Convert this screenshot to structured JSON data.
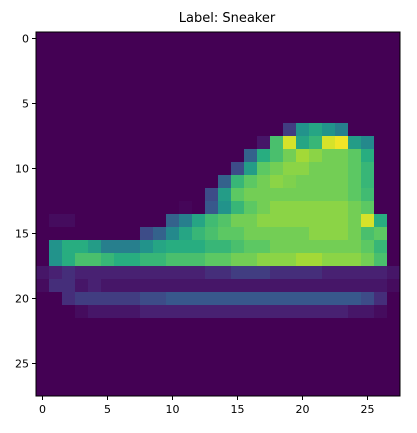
{
  "chart_data": {
    "type": "heatmap",
    "title": "Label: Sneaker",
    "colormap": "viridis",
    "value_range": [
      0,
      255
    ],
    "grid": false,
    "x_ticks": [
      0,
      5,
      10,
      15,
      20,
      25
    ],
    "y_ticks": [
      0,
      5,
      10,
      15,
      20,
      25
    ],
    "rows": 28,
    "cols": 28,
    "pixels": [
      [
        0,
        0,
        0,
        0,
        0,
        0,
        0,
        0,
        0,
        0,
        0,
        0,
        0,
        0,
        0,
        0,
        0,
        0,
        0,
        0,
        0,
        0,
        0,
        0,
        0,
        0,
        0,
        0
      ],
      [
        0,
        0,
        0,
        0,
        0,
        0,
        0,
        0,
        0,
        0,
        0,
        0,
        0,
        0,
        0,
        0,
        0,
        0,
        0,
        0,
        0,
        0,
        0,
        0,
        0,
        0,
        0,
        0
      ],
      [
        0,
        0,
        0,
        0,
        0,
        0,
        0,
        0,
        0,
        0,
        0,
        0,
        0,
        0,
        0,
        0,
        0,
        0,
        0,
        0,
        0,
        0,
        0,
        0,
        0,
        0,
        0,
        0
      ],
      [
        0,
        0,
        0,
        0,
        0,
        0,
        0,
        0,
        0,
        0,
        0,
        0,
        0,
        0,
        0,
        0,
        0,
        0,
        0,
        0,
        0,
        0,
        0,
        0,
        0,
        0,
        0,
        0
      ],
      [
        0,
        0,
        0,
        0,
        0,
        0,
        0,
        0,
        0,
        0,
        0,
        0,
        0,
        0,
        0,
        0,
        0,
        0,
        0,
        0,
        0,
        0,
        0,
        0,
        0,
        0,
        0,
        0
      ],
      [
        0,
        0,
        0,
        0,
        0,
        0,
        0,
        0,
        0,
        0,
        0,
        0,
        0,
        0,
        0,
        0,
        0,
        0,
        0,
        0,
        0,
        0,
        0,
        0,
        0,
        0,
        0,
        0
      ],
      [
        0,
        0,
        0,
        0,
        0,
        0,
        0,
        0,
        0,
        0,
        0,
        0,
        0,
        0,
        0,
        0,
        0,
        0,
        0,
        0,
        0,
        0,
        0,
        0,
        0,
        0,
        0,
        0
      ],
      [
        0,
        0,
        0,
        0,
        0,
        0,
        0,
        0,
        0,
        0,
        0,
        0,
        0,
        0,
        0,
        0,
        0,
        0,
        0,
        50,
        130,
        150,
        130,
        110,
        0,
        0,
        0,
        0
      ],
      [
        0,
        0,
        0,
        0,
        0,
        0,
        0,
        0,
        0,
        0,
        0,
        0,
        0,
        0,
        0,
        0,
        0,
        20,
        180,
        240,
        150,
        170,
        240,
        250,
        140,
        120,
        0,
        0
      ],
      [
        0,
        0,
        0,
        0,
        0,
        0,
        0,
        0,
        0,
        0,
        0,
        0,
        0,
        0,
        0,
        0,
        80,
        160,
        180,
        200,
        220,
        210,
        200,
        200,
        190,
        160,
        0,
        0
      ],
      [
        0,
        0,
        0,
        0,
        0,
        0,
        0,
        0,
        0,
        0,
        0,
        0,
        0,
        0,
        0,
        60,
        140,
        190,
        200,
        210,
        210,
        200,
        200,
        200,
        190,
        170,
        0,
        0
      ],
      [
        0,
        0,
        0,
        0,
        0,
        0,
        0,
        0,
        0,
        0,
        0,
        0,
        0,
        0,
        80,
        170,
        190,
        200,
        210,
        205,
        200,
        200,
        200,
        200,
        190,
        170,
        0,
        0
      ],
      [
        0,
        0,
        0,
        0,
        0,
        0,
        0,
        0,
        0,
        0,
        0,
        0,
        0,
        60,
        140,
        190,
        200,
        200,
        200,
        200,
        200,
        200,
        200,
        200,
        190,
        175,
        0,
        0
      ],
      [
        0,
        0,
        0,
        0,
        0,
        0,
        0,
        0,
        0,
        0,
        0,
        5,
        0,
        70,
        130,
        170,
        190,
        200,
        210,
        210,
        210,
        210,
        210,
        210,
        200,
        190,
        0,
        0
      ],
      [
        0,
        10,
        10,
        0,
        0,
        0,
        0,
        0,
        0,
        0,
        80,
        110,
        150,
        175,
        185,
        200,
        200,
        210,
        210,
        210,
        210,
        210,
        210,
        210,
        200,
        240,
        160,
        0
      ],
      [
        0,
        0,
        0,
        0,
        0,
        0,
        0,
        0,
        60,
        80,
        120,
        150,
        170,
        180,
        190,
        190,
        200,
        200,
        200,
        200,
        200,
        210,
        210,
        210,
        200,
        180,
        190,
        0
      ],
      [
        0,
        130,
        160,
        160,
        140,
        110,
        110,
        110,
        130,
        150,
        160,
        160,
        160,
        170,
        170,
        180,
        190,
        190,
        200,
        200,
        200,
        200,
        200,
        200,
        200,
        190,
        170,
        0
      ],
      [
        0,
        130,
        160,
        180,
        180,
        170,
        160,
        160,
        170,
        170,
        180,
        180,
        180,
        190,
        190,
        200,
        200,
        210,
        210,
        210,
        220,
        220,
        210,
        210,
        210,
        200,
        180,
        0
      ],
      [
        20,
        30,
        40,
        30,
        30,
        30,
        30,
        30,
        30,
        30,
        30,
        30,
        30,
        40,
        40,
        50,
        50,
        50,
        40,
        40,
        40,
        40,
        30,
        30,
        30,
        30,
        30,
        20
      ],
      [
        10,
        40,
        40,
        20,
        30,
        20,
        20,
        20,
        20,
        20,
        20,
        20,
        20,
        20,
        20,
        20,
        20,
        20,
        20,
        20,
        20,
        20,
        20,
        20,
        20,
        20,
        20,
        10
      ],
      [
        0,
        0,
        40,
        50,
        50,
        50,
        50,
        50,
        60,
        60,
        70,
        70,
        70,
        70,
        70,
        70,
        70,
        70,
        70,
        70,
        70,
        70,
        70,
        70,
        70,
        60,
        40,
        0
      ],
      [
        0,
        0,
        0,
        10,
        20,
        20,
        20,
        20,
        30,
        30,
        30,
        30,
        30,
        30,
        30,
        30,
        30,
        30,
        30,
        30,
        30,
        30,
        30,
        30,
        20,
        20,
        10,
        0
      ],
      [
        0,
        0,
        0,
        0,
        0,
        0,
        0,
        0,
        0,
        0,
        0,
        0,
        0,
        0,
        0,
        0,
        0,
        0,
        0,
        0,
        0,
        0,
        0,
        0,
        0,
        0,
        0,
        0
      ],
      [
        0,
        0,
        0,
        0,
        0,
        0,
        0,
        0,
        0,
        0,
        0,
        0,
        0,
        0,
        0,
        0,
        0,
        0,
        0,
        0,
        0,
        0,
        0,
        0,
        0,
        0,
        0,
        0
      ],
      [
        0,
        0,
        0,
        0,
        0,
        0,
        0,
        0,
        0,
        0,
        0,
        0,
        0,
        0,
        0,
        0,
        0,
        0,
        0,
        0,
        0,
        0,
        0,
        0,
        0,
        0,
        0,
        0
      ],
      [
        0,
        0,
        0,
        0,
        0,
        0,
        0,
        0,
        0,
        0,
        0,
        0,
        0,
        0,
        0,
        0,
        0,
        0,
        0,
        0,
        0,
        0,
        0,
        0,
        0,
        0,
        0,
        0
      ],
      [
        0,
        0,
        0,
        0,
        0,
        0,
        0,
        0,
        0,
        0,
        0,
        0,
        0,
        0,
        0,
        0,
        0,
        0,
        0,
        0,
        0,
        0,
        0,
        0,
        0,
        0,
        0,
        0
      ],
      [
        0,
        0,
        0,
        0,
        0,
        0,
        0,
        0,
        0,
        0,
        0,
        0,
        0,
        0,
        0,
        0,
        0,
        0,
        0,
        0,
        0,
        0,
        0,
        0,
        0,
        0,
        0,
        0
      ]
    ]
  }
}
